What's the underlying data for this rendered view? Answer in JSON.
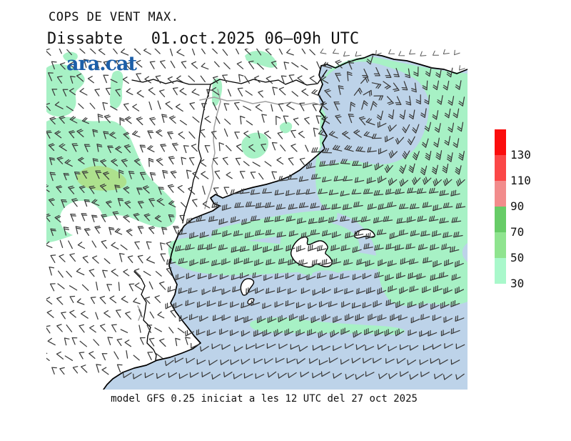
{
  "header": {
    "title": "COPS DE VENT MAX.",
    "subtitle": "Dissabte   01.oct.2025 06–09h UTC",
    "logo_text": "ara.cat",
    "logo_color": "#1c5fa8"
  },
  "footer": {
    "model_info": "model GFS 0.25 iniciat a les 12 UTC del 27 oct 2025"
  },
  "legend": {
    "labels": [
      "130",
      "110",
      "90",
      "70",
      "50",
      "30"
    ],
    "colors": [
      "#fb0d0d",
      "#fb4747",
      "#f28c8c",
      "#67cc67",
      "#8fe48f",
      "#a9f8cb"
    ]
  },
  "map": {
    "colors": {
      "sea": "#bdd3e9",
      "mint": "#a7f1c5",
      "green2": "#ade18d",
      "land": "#ffffff",
      "island": "#ffffff",
      "coast": "#000000",
      "border_black": "#000000",
      "border_gray": "#a0a0a0",
      "barb": "#3a3a3a",
      "barb_light": "#575757"
    },
    "wind_field": {
      "grid_dx": 15.5,
      "grid_dy": 19.4,
      "shaft_len": 12.5,
      "feather_len": 6.5,
      "eddy_center": [
        528,
        155
      ],
      "eddy_radius": 95,
      "base_angle_deg": 188,
      "northeast_angle_deg": 260
    }
  }
}
